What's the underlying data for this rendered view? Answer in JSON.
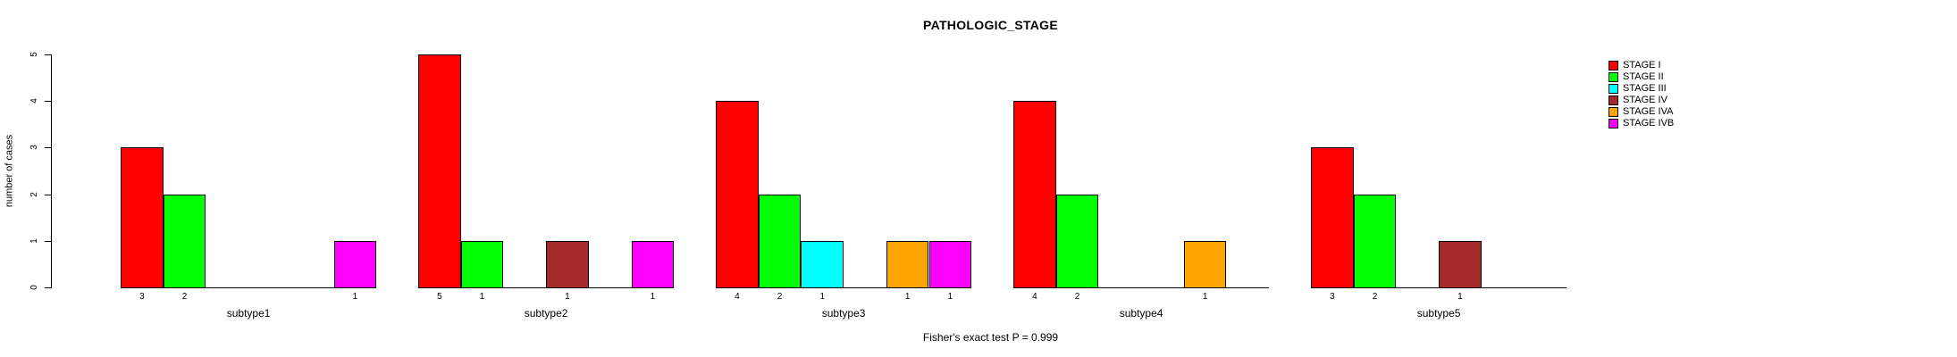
{
  "title": "PATHOLOGIC_STAGE",
  "footnote": "Fisher's exact test P = 0.999",
  "y_axis": {
    "label": "number of cases",
    "ticks": [
      0,
      1,
      2,
      3,
      4,
      5
    ]
  },
  "legend": {
    "position": "right",
    "entries": [
      {
        "label": "STAGE I",
        "color": "#FF0000"
      },
      {
        "label": "STAGE II",
        "color": "#00FF00"
      },
      {
        "label": "STAGE III",
        "color": "#00FFFF"
      },
      {
        "label": "STAGE IV",
        "color": "#A52A2A"
      },
      {
        "label": "STAGE IVA",
        "color": "#FFA500"
      },
      {
        "label": "STAGE IVB",
        "color": "#FF00FF"
      }
    ]
  },
  "chart_data": {
    "type": "bar",
    "title": "PATHOLOGIC_STAGE",
    "xlabel": "",
    "ylabel": "number of cases",
    "ylim": [
      0,
      5
    ],
    "grid": false,
    "legend_position": "right",
    "bar_mode": "grouped",
    "value_labels": "shown below nonzero bars",
    "categories": [
      "subtype1",
      "subtype2",
      "subtype3",
      "subtype4",
      "subtype5"
    ],
    "series": [
      {
        "name": "STAGE I",
        "color": "#FF0000",
        "values": [
          3,
          5,
          4,
          4,
          3
        ]
      },
      {
        "name": "STAGE II",
        "color": "#00FF00",
        "values": [
          2,
          1,
          2,
          2,
          2
        ]
      },
      {
        "name": "STAGE III",
        "color": "#00FFFF",
        "values": [
          0,
          0,
          1,
          0,
          0
        ]
      },
      {
        "name": "STAGE IV",
        "color": "#A52A2A",
        "values": [
          0,
          1,
          0,
          0,
          1
        ]
      },
      {
        "name": "STAGE IVA",
        "color": "#FFA500",
        "values": [
          0,
          0,
          1,
          1,
          0
        ]
      },
      {
        "name": "STAGE IVB",
        "color": "#FF00FF",
        "values": [
          1,
          1,
          1,
          0,
          0
        ]
      }
    ]
  }
}
